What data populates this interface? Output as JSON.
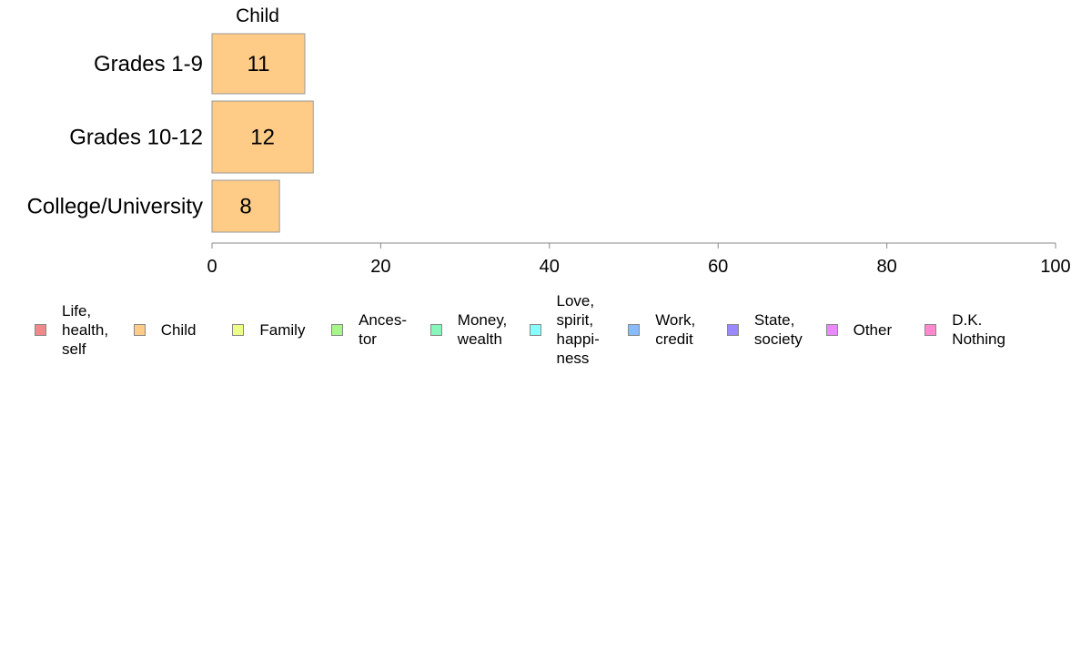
{
  "chart_data": {
    "type": "bar",
    "orientation": "horizontal",
    "stacked": true,
    "panel_title": "Child",
    "categories": [
      "Grades 1-9",
      "Grades 10-12",
      "College/University"
    ],
    "series": [
      {
        "name": "Child",
        "values": [
          11,
          12,
          8
        ],
        "color": "#FFCC88"
      }
    ],
    "data_labels": [
      "11",
      "12",
      "8"
    ],
    "xlim": [
      0,
      100
    ],
    "x_ticks": [
      0,
      20,
      40,
      60,
      80,
      100
    ],
    "x_tick_labels": [
      "0",
      "20",
      "40",
      "60",
      "80",
      "100"
    ],
    "xlabel": "",
    "ylabel": "",
    "grid": false,
    "legend_position": "bottom"
  },
  "legend": [
    {
      "label": "Life,\nhealth,\nself",
      "color": "#F08A8A"
    },
    {
      "label": "Child",
      "color": "#FFCC88"
    },
    {
      "label": "Family",
      "color": "#EEFF88"
    },
    {
      "label": "Ances-\ntor",
      "color": "#AAF588"
    },
    {
      "label": "Money,\nwealth",
      "color": "#88F5BB"
    },
    {
      "label": "Love,\nspirit,\nhappi-\nness",
      "color": "#88FFFF"
    },
    {
      "label": "Work,\ncredit",
      "color": "#88BBFF"
    },
    {
      "label": "State,\nsociety",
      "color": "#9988FF"
    },
    {
      "label": "Other",
      "color": "#E988FF"
    },
    {
      "label": "D.K.\nNothing",
      "color": "#FF88D0"
    }
  ]
}
